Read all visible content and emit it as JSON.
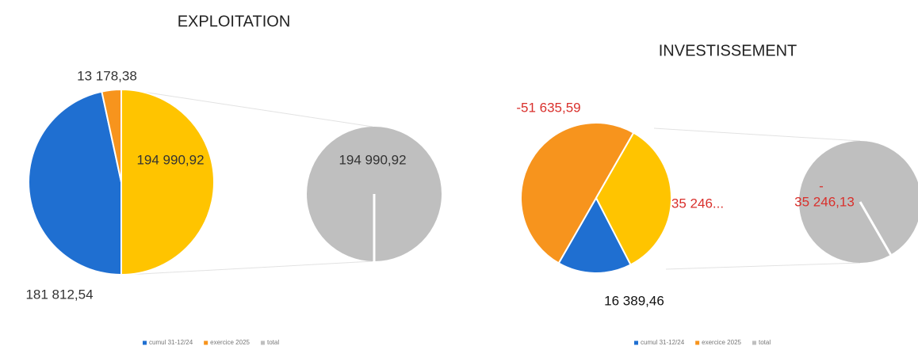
{
  "chart_data": [
    {
      "type": "pie-of-pie",
      "title": "EXPLOITATION",
      "categories": [
        "cumul 31-12/24",
        "exercice 2025",
        "total"
      ],
      "values": [
        181812.54,
        13178.38,
        194990.92
      ],
      "value_labels": [
        "181 812,54",
        "13 178,38",
        "194 990,92"
      ],
      "colors": [
        "#1f6fd1",
        "#f7941d",
        "#ffc400"
      ],
      "secondary_color": "#bfbfbf",
      "label_colors": [
        "#333333",
        "#333333",
        "#333333"
      ],
      "secondary_label": [
        "194 990,92"
      ],
      "secondary_label_color": "#333333",
      "legend": "bottom"
    },
    {
      "type": "pie-of-pie",
      "title": "INVESTISSEMENT",
      "categories": [
        "cumul 31-12/24",
        "exercice 2025",
        "total"
      ],
      "values": [
        16389.46,
        -51635.59,
        -35246.13
      ],
      "value_labels": [
        "16 389,46",
        "-51 635,59",
        "35 246..."
      ],
      "colors": [
        "#1f6fd1",
        "#f7941d",
        "#ffc400"
      ],
      "secondary_color": "#bfbfbf",
      "label_colors": [
        "#111111",
        "#d9302c",
        "#d9302c"
      ],
      "secondary_label": [
        "-",
        "35 246,13"
      ],
      "secondary_label_color": "#d9302c",
      "legend": "bottom"
    }
  ]
}
